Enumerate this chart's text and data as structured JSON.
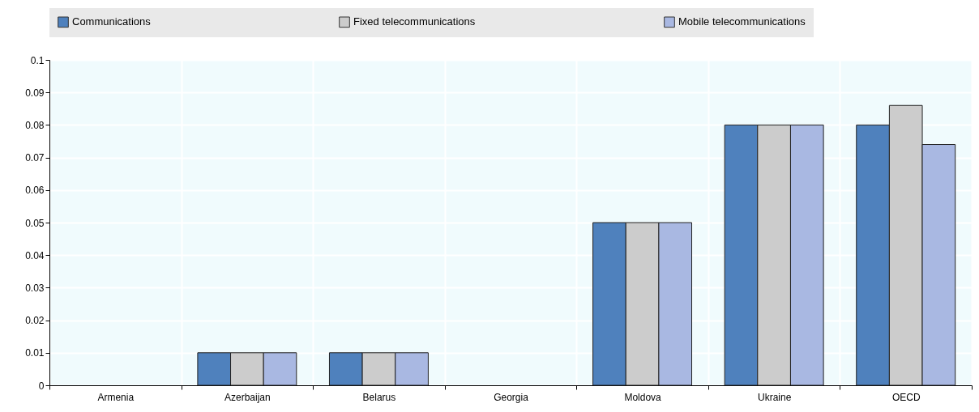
{
  "chart_data": {
    "type": "bar",
    "categories": [
      "Armenia",
      "Azerbaijan",
      "Belarus",
      "Georgia",
      "Moldova",
      "Ukraine",
      "OECD"
    ],
    "series": [
      {
        "name": "Communications",
        "color": "#4f81bd",
        "values": [
          0,
          0.01,
          0.01,
          0,
          0.05,
          0.08,
          0.08
        ]
      },
      {
        "name": "Fixed telecommunications",
        "color": "#cccccc",
        "values": [
          0,
          0.01,
          0.01,
          0,
          0.05,
          0.08,
          0.086
        ]
      },
      {
        "name": "Mobile telecommunications",
        "color": "#a9b8e2",
        "values": [
          0,
          0.01,
          0.01,
          0,
          0.05,
          0.08,
          0.074
        ]
      }
    ],
    "ylim": [
      0,
      0.1
    ],
    "yticks": [
      0,
      0.01,
      0.02,
      0.03,
      0.04,
      0.05,
      0.06,
      0.07,
      0.08,
      0.09,
      0.1
    ],
    "grid": true,
    "legend": "top"
  }
}
